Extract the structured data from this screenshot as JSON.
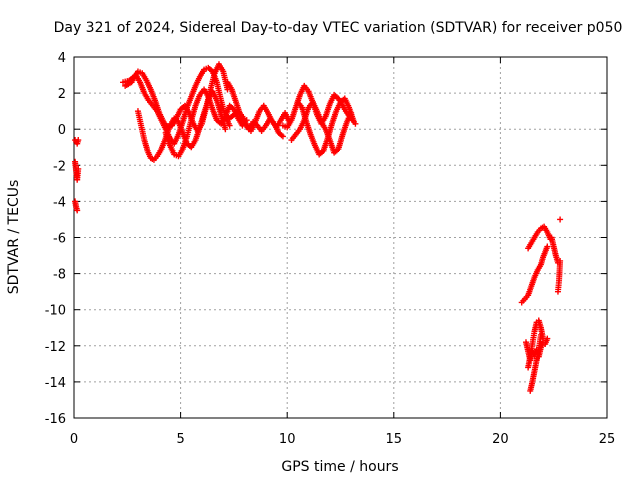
{
  "chart_data": {
    "type": "scatter",
    "title": "Day 321 of 2024, Sidereal Day-to-day VTEC variation (SDTVAR) for receiver p050",
    "xlabel": "GPS time / hours",
    "ylabel": "SDTVAR / TECUs",
    "xlim": [
      0,
      25
    ],
    "ylim": [
      -16,
      4
    ],
    "x_ticks": [
      0,
      5,
      10,
      15,
      20,
      25
    ],
    "y_ticks": [
      -16,
      -14,
      -12,
      -10,
      -8,
      -6,
      -4,
      -2,
      0,
      2,
      4
    ],
    "grid": true,
    "marker": "+",
    "color": "#ff0000",
    "series": [
      {
        "name": "SDTVAR",
        "tracks": [
          {
            "x": [
              0.05,
              0.1,
              0.15,
              0.2
            ],
            "y": [
              -0.6,
              -0.7,
              -0.8,
              -0.6
            ]
          },
          {
            "x": [
              0.05,
              0.1,
              0.15,
              0.2
            ],
            "y": [
              -1.8,
              -2.3,
              -2.8,
              -2.2
            ]
          },
          {
            "x": [
              0.05,
              0.1,
              0.15
            ],
            "y": [
              -4.0,
              -4.3,
              -4.5
            ]
          },
          {
            "x": [
              2.3,
              2.6,
              2.9,
              3.1,
              3.3,
              3.5,
              3.7,
              3.9,
              4.1,
              4.3,
              4.5,
              4.7,
              4.9,
              5.1,
              5.3,
              5.5,
              5.7,
              5.9,
              6.1,
              6.3,
              6.5,
              6.7,
              6.9,
              7.1,
              7.3
            ],
            "y": [
              2.6,
              2.7,
              3.0,
              2.6,
              2.0,
              1.6,
              1.3,
              1.0,
              0.5,
              0.0,
              -0.5,
              -0.8,
              -0.3,
              0.4,
              1.2,
              1.8,
              2.4,
              2.9,
              3.3,
              3.4,
              3.2,
              2.6,
              1.6,
              0.7,
              0.2
            ]
          },
          {
            "x": [
              2.4,
              2.7,
              3.0,
              3.2,
              3.4,
              3.6,
              3.8,
              4.0,
              4.2,
              4.4,
              4.6,
              4.8,
              5.0,
              5.2,
              5.4,
              5.6,
              5.8,
              6.0,
              6.2,
              6.4,
              6.6,
              6.8,
              7.0,
              7.2
            ],
            "y": [
              2.4,
              2.6,
              3.2,
              3.1,
              2.7,
              2.2,
              1.6,
              0.9,
              0.4,
              0.1,
              0.2,
              0.6,
              1.1,
              1.3,
              0.9,
              0.3,
              -0.1,
              0.3,
              1.2,
              2.2,
              3.1,
              3.6,
              3.2,
              2.2
            ]
          },
          {
            "x": [
              3.0,
              3.15,
              3.3,
              3.45,
              3.6,
              3.75,
              3.9,
              4.1,
              4.3,
              4.5,
              4.7,
              4.9,
              5.1,
              5.3,
              5.5,
              5.7,
              5.9,
              6.1,
              6.3,
              6.5,
              6.7,
              6.9,
              7.1
            ],
            "y": [
              1.0,
              0.2,
              -0.6,
              -1.2,
              -1.6,
              -1.7,
              -1.5,
              -1.1,
              -0.5,
              0.2,
              0.6,
              0.4,
              -0.2,
              -0.8,
              -1.0,
              -0.6,
              0.1,
              0.9,
              1.6,
              2.1,
              1.6,
              0.8,
              0.0
            ]
          },
          {
            "x": [
              4.3,
              4.5,
              4.7,
              4.9,
              5.1,
              5.3,
              5.5,
              5.7,
              5.9,
              6.1,
              6.3,
              6.5,
              6.7,
              6.9,
              7.1,
              7.3,
              7.5,
              7.7,
              7.9,
              8.1
            ],
            "y": [
              -0.2,
              -0.9,
              -1.4,
              -1.5,
              -1.1,
              -0.4,
              0.5,
              1.3,
              1.9,
              2.2,
              1.8,
              1.1,
              0.5,
              0.3,
              0.7,
              1.3,
              1.1,
              0.6,
              0.2,
              0.5
            ]
          },
          {
            "x": [
              7.1,
              7.3,
              7.5,
              7.7,
              7.9,
              8.1,
              8.3,
              8.5,
              8.7,
              8.9,
              9.1,
              9.3,
              9.5,
              9.7,
              9.9,
              10.1
            ],
            "y": [
              0.8,
              0.6,
              0.8,
              1.0,
              0.7,
              0.2,
              -0.1,
              0.4,
              1.0,
              1.3,
              0.9,
              0.4,
              0.1,
              0.5,
              0.9,
              0.4
            ]
          },
          {
            "x": [
              7.2,
              7.4,
              7.6,
              7.8,
              8.0,
              8.2,
              8.4,
              8.6,
              8.8,
              9.0,
              9.2,
              9.4,
              9.6,
              9.8
            ],
            "y": [
              2.6,
              2.2,
              1.5,
              0.8,
              0.3,
              0.0,
              0.4,
              0.2,
              -0.1,
              0.2,
              0.6,
              0.3,
              -0.2,
              -0.4
            ]
          },
          {
            "x": [
              9.8,
              10.0,
              10.2,
              10.4,
              10.6,
              10.8,
              11.0,
              11.2,
              11.4,
              11.6,
              11.8,
              12.0,
              12.2,
              12.4,
              12.6,
              12.8,
              13.0,
              13.2
            ],
            "y": [
              0.2,
              0.1,
              0.5,
              1.2,
              1.9,
              2.4,
              2.1,
              1.5,
              0.8,
              0.3,
              0.7,
              1.4,
              1.9,
              1.7,
              1.3,
              0.9,
              0.6,
              0.3
            ]
          },
          {
            "x": [
              10.2,
              10.4,
              10.6,
              10.8,
              11.0,
              11.2,
              11.4,
              11.6,
              11.8,
              12.0,
              12.2,
              12.4,
              12.6,
              12.8,
              13.0
            ],
            "y": [
              -0.6,
              -0.3,
              0.0,
              0.5,
              1.2,
              1.5,
              1.0,
              0.4,
              0.0,
              -0.6,
              -1.3,
              -1.1,
              -0.3,
              0.4,
              0.9
            ]
          },
          {
            "x": [
              10.5,
              10.7,
              10.9,
              11.1,
              11.3,
              11.5,
              11.7,
              11.9,
              12.1,
              12.3,
              12.5,
              12.7,
              12.9,
              13.1
            ],
            "y": [
              1.5,
              1.2,
              0.4,
              -0.3,
              -0.9,
              -1.4,
              -1.2,
              -0.5,
              0.3,
              1.0,
              1.5,
              1.7,
              1.2,
              0.5
            ]
          },
          {
            "x": [
              21.0,
              21.15,
              21.3,
              21.45,
              21.6,
              21.75,
              21.9,
              22.0,
              22.1,
              22.2
            ],
            "y": [
              -9.6,
              -9.4,
              -9.2,
              -8.7,
              -8.2,
              -7.8,
              -7.5,
              -7.1,
              -6.8,
              -6.5
            ]
          },
          {
            "x": [
              21.3,
              21.45,
              21.6,
              21.75,
              21.9,
              22.05,
              22.2,
              22.35
            ],
            "y": [
              -6.6,
              -6.3,
              -6.0,
              -5.7,
              -5.5,
              -5.4,
              -5.7,
              -6.1
            ]
          },
          {
            "x": [
              22.4,
              22.5,
              22.6,
              22.7,
              22.8,
              22.75,
              22.7
            ],
            "y": [
              -6.0,
              -6.5,
              -7.0,
              -7.4,
              -7.3,
              -8.4,
              -9.0
            ]
          },
          {
            "x": [
              21.2,
              21.3,
              21.4,
              21.5,
              21.6,
              21.7,
              21.8,
              21.9,
              22.0,
              22.1,
              22.2
            ],
            "y": [
              -11.8,
              -12.3,
              -12.8,
              -12.3,
              -12.5,
              -12.2,
              -12.6,
              -12.1,
              -11.8,
              -11.9,
              -11.6
            ]
          },
          {
            "x": [
              21.4,
              21.5,
              21.6,
              21.7,
              21.8,
              21.9
            ],
            "y": [
              -14.5,
              -14.0,
              -13.4,
              -12.8,
              -12.2,
              -11.4
            ]
          },
          {
            "x": [
              21.3,
              21.4,
              21.5,
              21.6,
              21.7,
              21.8,
              21.9,
              22.0
            ],
            "y": [
              -13.2,
              -12.6,
              -11.9,
              -11.2,
              -10.7,
              -10.6,
              -11.0,
              -11.6
            ]
          },
          {
            "x": [
              22.8
            ],
            "y": [
              -5.0
            ]
          }
        ]
      }
    ]
  }
}
